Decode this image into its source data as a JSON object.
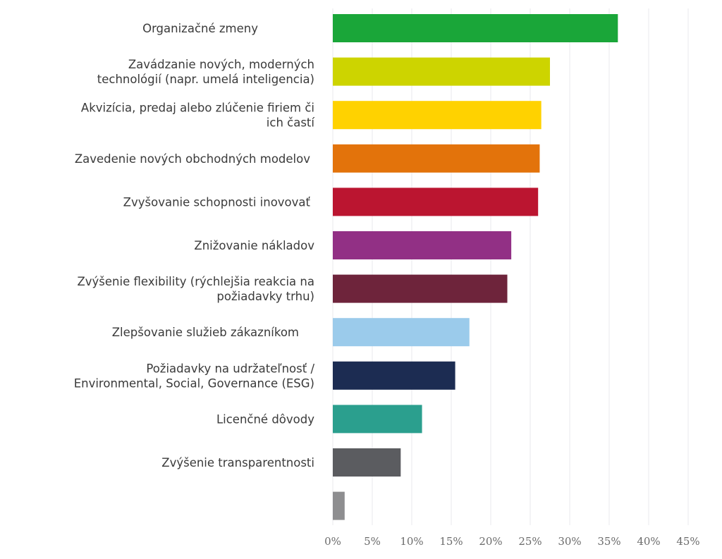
{
  "chart_data": {
    "type": "bar",
    "orientation": "horizontal",
    "title": "",
    "xlabel": "",
    "ylabel": "",
    "xlim": [
      0,
      45
    ],
    "x_unit": "%",
    "grid": true,
    "legend": "none",
    "x_ticks": [
      "0%",
      "5%",
      "10%",
      "15%",
      "20%",
      "25%",
      "30%",
      "35%",
      "40%",
      "45%"
    ],
    "categories": [
      [
        "Organizačné zmeny"
      ],
      [
        "Zavádzanie nových, moderných",
        "technológií (napr. umelá inteligencia)"
      ],
      [
        "Akvizícia, predaj alebo zlúčenie firiem či",
        "ich častí"
      ],
      [
        "Zavedenie nových obchodných modelov"
      ],
      [
        "Zvyšovanie schopnosti inovovať"
      ],
      [
        "Znižovanie nákladov"
      ],
      [
        "Zvýšenie flexibility (rýchlejšia reakcia na",
        "požiadavky trhu)"
      ],
      [
        "Zlepšovanie služieb zákazníkom"
      ],
      [
        "Požiadavky na udržateľnosť /",
        "Environmental, Social, Governance (ESG)"
      ],
      [
        "Licenčné dôvody"
      ],
      [
        "Zvýšenie transparentnosti"
      ],
      []
    ],
    "values": [
      36.1,
      27.5,
      26.4,
      26.2,
      26.0,
      22.6,
      22.1,
      17.3,
      15.5,
      11.3,
      8.6,
      1.5
    ],
    "colors": [
      "#1aa639",
      "#cdd400",
      "#ffd200",
      "#e3730b",
      "#bb1530",
      "#923085",
      "#6e243b",
      "#9bcbeb",
      "#1c2c52",
      "#2b9f8e",
      "#5b5c60",
      "#8e8e90"
    ]
  }
}
